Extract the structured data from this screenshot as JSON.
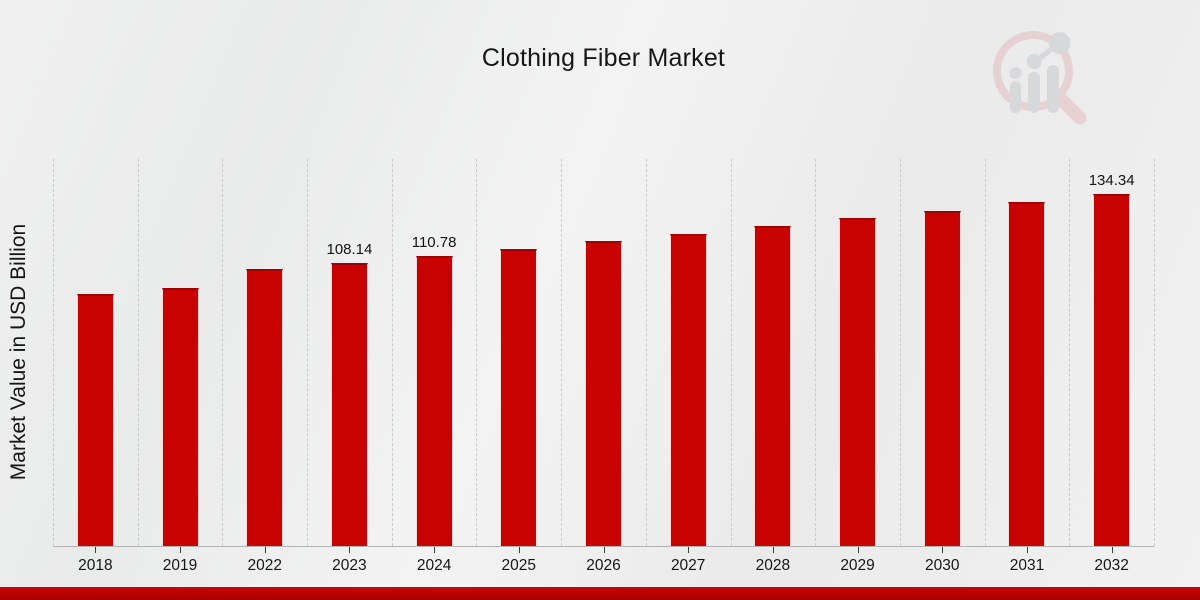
{
  "title": "Clothing Fiber Market",
  "ylabel": "Market Value in USD Billion",
  "colors": {
    "bar": "#c80101",
    "bar_edge": "#9e0202",
    "footer_band": "#b90404",
    "gridline": "#c9c9c9",
    "background": "#eeeeee",
    "text": "#161616"
  },
  "watermark": {
    "icon": "magnifier-bar-chart-logo",
    "ring_color": "#e3bcbf",
    "bars_color": "#c5c9cc"
  },
  "chart_data": {
    "type": "bar",
    "title": "Clothing Fiber Market",
    "xlabel": "",
    "ylabel": "Market Value in USD Billion",
    "categories": [
      "2018",
      "2019",
      "2022",
      "2023",
      "2024",
      "2025",
      "2026",
      "2027",
      "2028",
      "2029",
      "2030",
      "2031",
      "2032"
    ],
    "values": [
      96.1,
      98.4,
      105.6,
      108.14,
      110.78,
      113.5,
      116.3,
      119.1,
      122.0,
      125.0,
      128.0,
      131.2,
      134.34
    ],
    "point_labels": [
      "",
      "",
      "",
      "108.14",
      "110.78",
      "",
      "",
      "",
      "",
      "",
      "",
      "",
      "134.34"
    ],
    "ylim": [
      0,
      148
    ],
    "grid": "vertical-dashed-band-separators",
    "legend": "none",
    "bar_color": "#c80101"
  }
}
